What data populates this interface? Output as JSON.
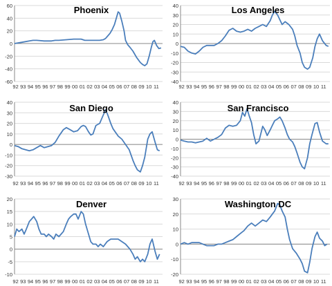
{
  "chart_data": [
    {
      "type": "line",
      "title": "Phoenix",
      "ylim": [
        -60,
        60
      ],
      "yticks": [
        60,
        40,
        20,
        0,
        -20,
        -40,
        -60
      ],
      "xlabels": [
        "92",
        "93",
        "94",
        "95",
        "96",
        "97",
        "98",
        "99",
        "00",
        "01",
        "02",
        "03",
        "04",
        "05",
        "06",
        "07",
        "08",
        "09",
        "10",
        "11"
      ],
      "grid": true,
      "line_color": "#4a7ebb",
      "x": [
        1992.0,
        1993.0,
        1994.0,
        1994.5,
        1995.0,
        1996.0,
        1997.0,
        1997.5,
        1998.0,
        1999.0,
        2000.0,
        2001.0,
        2001.5,
        2002.0,
        2002.5,
        2003.0,
        2003.5,
        2004.0,
        2004.3,
        2004.6,
        2004.9,
        2005.2,
        2005.5,
        2005.8,
        2006.0,
        2006.2,
        2006.5,
        2006.8,
        2007.0,
        2007.3,
        2007.6,
        2008.0,
        2008.5,
        2009.0,
        2009.3,
        2009.6,
        2009.9,
        2010.2,
        2010.5,
        2010.7,
        2010.9,
        2011.2,
        2011.5,
        2011.8
      ],
      "series": [
        {
          "values": [
            0,
            2,
            4,
            5,
            5,
            4,
            4,
            5,
            5,
            6,
            7,
            7,
            5,
            5,
            5,
            5,
            5,
            6,
            8,
            12,
            16,
            22,
            30,
            42,
            50,
            48,
            35,
            20,
            5,
            -2,
            -6,
            -12,
            -22,
            -30,
            -33,
            -35,
            -32,
            -20,
            -5,
            3,
            5,
            -3,
            -8,
            -7
          ]
        }
      ]
    },
    {
      "type": "line",
      "title": "Los Angeles",
      "ylim": [
        -40,
        40
      ],
      "yticks": [
        40,
        30,
        20,
        10,
        0,
        -10,
        -20,
        -30,
        -40
      ],
      "xlabels": [
        "92",
        "93",
        "94",
        "95",
        "96",
        "97",
        "98",
        "99",
        "00",
        "01",
        "02",
        "03",
        "04",
        "05",
        "06",
        "07",
        "08",
        "09",
        "10",
        "11"
      ],
      "grid": true,
      "line_color": "#4a7ebb",
      "x": [
        1992.0,
        1992.5,
        1993.0,
        1993.5,
        1994.0,
        1994.5,
        1995.0,
        1995.5,
        1996.0,
        1996.5,
        1997.0,
        1997.5,
        1998.0,
        1998.5,
        1999.0,
        1999.5,
        2000.0,
        2000.5,
        2001.0,
        2001.5,
        2002.0,
        2002.5,
        2003.0,
        2003.5,
        2004.0,
        2004.3,
        2004.6,
        2005.0,
        2005.3,
        2005.6,
        2006.0,
        2006.5,
        2007.0,
        2007.3,
        2007.6,
        2008.0,
        2008.3,
        2008.6,
        2009.0,
        2009.3,
        2009.7,
        2010.0,
        2010.3,
        2010.6,
        2011.0,
        2011.5,
        2011.8
      ],
      "series": [
        {
          "values": [
            -3,
            -4,
            -8,
            -10,
            -11,
            -8,
            -4,
            -2,
            -2,
            -2,
            0,
            3,
            8,
            14,
            16,
            13,
            12,
            13,
            15,
            13,
            16,
            18,
            20,
            18,
            24,
            30,
            34,
            30,
            25,
            20,
            23,
            20,
            15,
            8,
            -2,
            -10,
            -20,
            -25,
            -27,
            -25,
            -15,
            -3,
            5,
            10,
            3,
            -2,
            -3
          ]
        }
      ]
    },
    {
      "type": "line",
      "title": "San Diego",
      "ylim": [
        -30,
        40
      ],
      "yticks": [
        40,
        30,
        20,
        10,
        0,
        -10,
        -20,
        -30
      ],
      "xlabels": [
        "92",
        "93",
        "94",
        "95",
        "96",
        "97",
        "98",
        "99",
        "00",
        "01",
        "02",
        "03",
        "04",
        "05",
        "06",
        "07",
        "08",
        "09",
        "10",
        "11"
      ],
      "grid": true,
      "line_color": "#4a7ebb",
      "x": [
        1992.0,
        1992.5,
        1993.0,
        1993.5,
        1994.0,
        1994.5,
        1995.0,
        1995.5,
        1996.0,
        1996.5,
        1997.0,
        1997.5,
        1998.0,
        1998.3,
        1998.6,
        1999.0,
        1999.5,
        2000.0,
        2000.5,
        2001.0,
        2001.3,
        2001.6,
        2002.0,
        2002.3,
        2002.6,
        2003.0,
        2003.5,
        2004.0,
        2004.3,
        2004.6,
        2005.0,
        2005.3,
        2005.6,
        2006.0,
        2006.5,
        2007.0,
        2007.5,
        2008.0,
        2008.3,
        2008.6,
        2009.0,
        2009.3,
        2009.6,
        2010.0,
        2010.3,
        2010.6,
        2011.0,
        2011.3,
        2011.6
      ],
      "series": [
        {
          "values": [
            -1,
            -2,
            -4,
            -5,
            -6,
            -5,
            -3,
            -1,
            -3,
            -2,
            -1,
            2,
            8,
            11,
            14,
            16,
            14,
            12,
            13,
            17,
            18,
            17,
            12,
            9,
            10,
            18,
            20,
            28,
            33,
            28,
            20,
            15,
            12,
            8,
            5,
            0,
            -5,
            -15,
            -20,
            -24,
            -26,
            -20,
            -12,
            5,
            10,
            12,
            2,
            -5,
            -6
          ]
        }
      ]
    },
    {
      "type": "line",
      "title": "San Francisco",
      "ylim": [
        -40,
        40
      ],
      "yticks": [
        40,
        30,
        20,
        10,
        0,
        -10,
        -20,
        -30,
        -40
      ],
      "xlabels": [
        "92",
        "93",
        "94",
        "95",
        "96",
        "97",
        "98",
        "99",
        "00",
        "01",
        "02",
        "03",
        "04",
        "05",
        "06",
        "07",
        "08",
        "09",
        "10",
        "11"
      ],
      "grid": true,
      "line_color": "#4a7ebb",
      "x": [
        1992.0,
        1992.5,
        1993.0,
        1993.5,
        1994.0,
        1994.5,
        1995.0,
        1995.5,
        1996.0,
        1996.5,
        1997.0,
        1997.5,
        1998.0,
        1998.5,
        1999.0,
        1999.5,
        2000.0,
        2000.3,
        2000.6,
        2000.9,
        2001.2,
        2001.5,
        2001.8,
        2002.1,
        2002.5,
        2003.0,
        2003.3,
        2003.6,
        2004.0,
        2004.3,
        2004.6,
        2005.0,
        2005.3,
        2005.6,
        2006.0,
        2006.3,
        2006.6,
        2007.0,
        2007.3,
        2007.6,
        2008.0,
        2008.3,
        2008.6,
        2009.0,
        2009.3,
        2009.6,
        2010.0,
        2010.3,
        2010.6,
        2011.0,
        2011.5,
        2011.8
      ],
      "series": [
        {
          "values": [
            -1,
            -2,
            -3,
            -3,
            -4,
            -3,
            -2,
            1,
            -2,
            0,
            2,
            5,
            12,
            15,
            14,
            15,
            20,
            29,
            25,
            33,
            25,
            18,
            5,
            -5,
            -2,
            14,
            10,
            4,
            10,
            15,
            20,
            22,
            24,
            20,
            12,
            5,
            0,
            -3,
            -8,
            -15,
            -25,
            -30,
            -32,
            -20,
            -5,
            5,
            17,
            18,
            8,
            -2,
            -5,
            -5
          ]
        }
      ]
    },
    {
      "type": "line",
      "title": "Denver",
      "ylim": [
        -10,
        20
      ],
      "yticks": [
        20,
        15,
        10,
        5,
        0,
        -5,
        -10
      ],
      "xlabels": [
        "92",
        "93",
        "94",
        "95",
        "96",
        "97",
        "98",
        "99",
        "00",
        "01",
        "02",
        "03",
        "04",
        "05",
        "06",
        "07",
        "08",
        "09",
        "10",
        "11"
      ],
      "grid": true,
      "line_color": "#4a7ebb",
      "x": [
        1992.0,
        1992.3,
        1992.6,
        1993.0,
        1993.3,
        1993.6,
        1994.0,
        1994.3,
        1994.6,
        1995.0,
        1995.3,
        1995.6,
        1996.0,
        1996.3,
        1996.6,
        1997.0,
        1997.3,
        1997.6,
        1998.0,
        1998.3,
        1998.6,
        1999.0,
        1999.3,
        1999.6,
        2000.0,
        2000.3,
        2000.6,
        2001.0,
        2001.3,
        2001.6,
        2002.0,
        2002.3,
        2002.6,
        2003.0,
        2003.3,
        2003.6,
        2004.0,
        2004.5,
        2005.0,
        2005.5,
        2006.0,
        2006.5,
        2007.0,
        2007.3,
        2007.6,
        2008.0,
        2008.3,
        2008.6,
        2009.0,
        2009.3,
        2009.6,
        2010.0,
        2010.3,
        2010.6,
        2011.0,
        2011.3,
        2011.6
      ],
      "series": [
        {
          "values": [
            5,
            8,
            7,
            8,
            6,
            8,
            11,
            12,
            13,
            11,
            8,
            6,
            6,
            5,
            6,
            5,
            4,
            6,
            5,
            6,
            7,
            10,
            12,
            13,
            14,
            14,
            12,
            15,
            14,
            10,
            6,
            3,
            2,
            2,
            1,
            2,
            1,
            3,
            4,
            4,
            4,
            3,
            2,
            1,
            0,
            -2,
            -4,
            -3,
            -5,
            -4,
            -5,
            -2,
            2,
            4,
            -1,
            -4,
            -2
          ]
        }
      ]
    },
    {
      "type": "line",
      "title": "Washington DC",
      "ylim": [
        -20,
        30
      ],
      "yticks": [
        30,
        20,
        10,
        0,
        -10,
        -20
      ],
      "xlabels": [
        "92",
        "93",
        "94",
        "95",
        "96",
        "97",
        "98",
        "99",
        "00",
        "01",
        "02",
        "03",
        "04",
        "05",
        "06",
        "07",
        "08",
        "09",
        "10",
        "11"
      ],
      "grid": true,
      "line_color": "#4a7ebb",
      "x": [
        1992.0,
        1992.5,
        1993.0,
        1993.5,
        1994.0,
        1994.5,
        1995.0,
        1995.5,
        1996.0,
        1996.5,
        1997.0,
        1997.5,
        1998.0,
        1998.5,
        1999.0,
        1999.5,
        2000.0,
        2000.5,
        2001.0,
        2001.5,
        2002.0,
        2002.5,
        2003.0,
        2003.5,
        2004.0,
        2004.3,
        2004.6,
        2005.0,
        2005.3,
        2005.6,
        2006.0,
        2006.3,
        2006.6,
        2007.0,
        2007.5,
        2008.0,
        2008.3,
        2008.6,
        2009.0,
        2009.3,
        2009.6,
        2010.0,
        2010.3,
        2010.6,
        2011.0,
        2011.3,
        2011.6
      ],
      "series": [
        {
          "values": [
            0,
            1,
            0,
            1,
            1,
            1,
            0,
            -1,
            -1,
            -1,
            0,
            0,
            1,
            2,
            3,
            5,
            7,
            9,
            12,
            14,
            12,
            14,
            16,
            15,
            18,
            20,
            22,
            27,
            26,
            22,
            18,
            10,
            3,
            -3,
            -6,
            -10,
            -13,
            -18,
            -19,
            -12,
            -3,
            5,
            8,
            4,
            2,
            -1,
            0
          ]
        }
      ]
    }
  ]
}
